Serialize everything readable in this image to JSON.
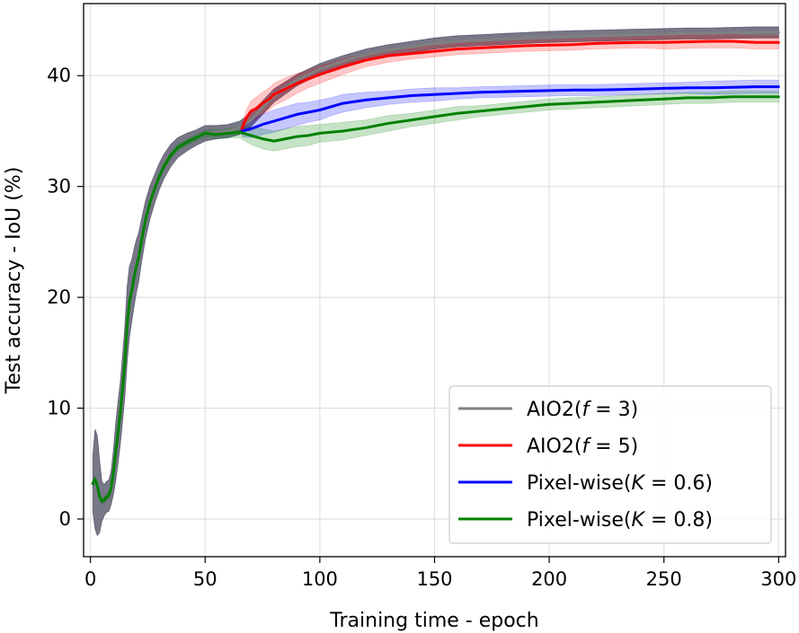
{
  "chart_data": {
    "type": "line",
    "title": "",
    "xlabel": "Training time - epoch",
    "ylabel": "Test accuracy - IoU (%)",
    "xlim": [
      -3,
      303
    ],
    "ylim": [
      -3.4,
      46.5
    ],
    "xticks": [
      0,
      50,
      100,
      150,
      200,
      250,
      300
    ],
    "yticks": [
      0,
      10,
      20,
      30,
      40
    ],
    "grid": true,
    "legend_position": "lower-right",
    "series": [
      {
        "name": "AIO2(f = 3)",
        "legend_prefix": "AIO2(",
        "legend_var": "f",
        "legend_suffix": " = 3)",
        "color": "#808080",
        "band_color": "#4a4a60",
        "x": [
          1,
          2,
          3,
          4,
          5,
          6,
          7,
          8,
          9,
          10,
          11,
          12,
          13,
          14,
          15,
          16,
          17,
          18,
          19,
          20,
          21,
          22,
          24,
          26,
          28,
          30,
          32,
          35,
          38,
          42,
          46,
          50,
          55,
          60,
          65,
          70,
          80,
          90,
          100,
          110,
          120,
          130,
          140,
          150,
          160,
          170,
          180,
          190,
          200,
          210,
          220,
          230,
          240,
          250,
          260,
          270,
          280,
          290,
          300
        ],
        "y": [
          3.2,
          3.6,
          3.0,
          2.0,
          1.6,
          1.7,
          2.0,
          2.1,
          2.8,
          4.2,
          6.0,
          7.8,
          9.5,
          11.8,
          14.2,
          17.6,
          19.6,
          20.6,
          21.8,
          22.8,
          23.6,
          24.8,
          27.0,
          28.6,
          29.8,
          30.9,
          31.8,
          32.8,
          33.5,
          34.0,
          34.4,
          34.8,
          34.9,
          35.0,
          35.3,
          36.0,
          38.2,
          39.6,
          40.6,
          41.3,
          41.9,
          42.3,
          42.6,
          42.9,
          43.1,
          43.2,
          43.3,
          43.4,
          43.5,
          43.55,
          43.6,
          43.65,
          43.7,
          43.75,
          43.8,
          43.8,
          43.85,
          43.9,
          43.9
        ],
        "band": [
          2.5,
          4.5,
          4.5,
          3.2,
          1.8,
          1.4,
          1.4,
          1.4,
          1.5,
          2.0,
          2.6,
          2.8,
          2.8,
          3.0,
          3.2,
          3.4,
          3.2,
          2.8,
          2.6,
          2.4,
          2.2,
          2.0,
          1.7,
          1.5,
          1.3,
          1.2,
          1.1,
          1.0,
          0.9,
          0.8,
          0.7,
          0.7,
          0.6,
          0.6,
          0.6,
          0.6,
          0.6,
          0.5,
          0.5,
          0.5,
          0.5,
          0.5,
          0.5,
          0.5,
          0.5,
          0.5,
          0.5,
          0.5,
          0.5,
          0.5,
          0.5,
          0.5,
          0.5,
          0.5,
          0.5,
          0.5,
          0.5,
          0.5,
          0.5
        ]
      },
      {
        "name": "AIO2(f = 5)",
        "legend_prefix": "AIO2(",
        "legend_var": "f",
        "legend_suffix": " = 5)",
        "color": "#ff0000",
        "band_color": "#ff0000",
        "x": [
          66,
          68,
          70,
          72,
          75,
          78,
          80,
          85,
          90,
          95,
          100,
          110,
          120,
          130,
          140,
          150,
          160,
          170,
          180,
          190,
          200,
          210,
          220,
          230,
          240,
          250,
          260,
          270,
          280,
          290,
          300
        ],
        "y": [
          35.2,
          36.2,
          36.8,
          37.0,
          37.5,
          37.9,
          38.3,
          38.8,
          39.3,
          39.7,
          40.1,
          40.8,
          41.4,
          41.8,
          42.0,
          42.2,
          42.4,
          42.5,
          42.6,
          42.7,
          42.75,
          42.8,
          42.9,
          42.95,
          43.0,
          43.0,
          43.05,
          43.1,
          43.1,
          43.0,
          43.0
        ],
        "band": [
          0.4,
          0.7,
          0.9,
          1.0,
          1.0,
          1.0,
          1.0,
          1.0,
          0.9,
          0.8,
          0.8,
          0.7,
          0.6,
          0.6,
          0.5,
          0.5,
          0.5,
          0.5,
          0.5,
          0.5,
          0.5,
          0.5,
          0.5,
          0.5,
          0.5,
          0.6,
          0.6,
          0.6,
          0.6,
          0.6,
          0.6
        ]
      },
      {
        "name": "Pixel-wise(K = 0.6)",
        "legend_prefix": "Pixel-wise(",
        "legend_var": "K",
        "legend_suffix": " = 0.6)",
        "color": "#0000ff",
        "band_color": "#0000ff",
        "x": [
          66,
          70,
          75,
          80,
          85,
          90,
          95,
          100,
          105,
          110,
          120,
          130,
          140,
          150,
          160,
          170,
          180,
          190,
          200,
          210,
          220,
          230,
          240,
          250,
          260,
          270,
          280,
          290,
          300
        ],
        "y": [
          35.0,
          35.2,
          35.6,
          35.9,
          36.2,
          36.5,
          36.7,
          36.9,
          37.2,
          37.5,
          37.8,
          38.0,
          38.2,
          38.3,
          38.4,
          38.5,
          38.55,
          38.6,
          38.65,
          38.7,
          38.7,
          38.75,
          38.8,
          38.85,
          38.9,
          38.9,
          38.95,
          39.0,
          39.0
        ],
        "band": [
          0.5,
          0.8,
          0.9,
          1.0,
          1.0,
          1.0,
          0.9,
          0.9,
          0.8,
          0.8,
          0.7,
          0.6,
          0.6,
          0.6,
          0.5,
          0.5,
          0.5,
          0.5,
          0.5,
          0.5,
          0.5,
          0.5,
          0.5,
          0.5,
          0.5,
          0.6,
          0.6,
          0.6,
          0.6
        ]
      },
      {
        "name": "Pixel-wise(K = 0.8)",
        "legend_prefix": "Pixel-wise(",
        "legend_var": "K",
        "legend_suffix": " = 0.8)",
        "color": "#008000",
        "band_color": "#008000",
        "x": [
          1,
          2,
          3,
          4,
          5,
          6,
          7,
          8,
          9,
          10,
          11,
          12,
          13,
          14,
          15,
          16,
          17,
          18,
          19,
          20,
          21,
          22,
          24,
          26,
          28,
          30,
          32,
          35,
          38,
          42,
          46,
          50,
          55,
          60,
          65,
          70,
          75,
          80,
          85,
          90,
          95,
          100,
          110,
          120,
          130,
          140,
          150,
          160,
          170,
          180,
          190,
          200,
          210,
          220,
          230,
          240,
          250,
          260,
          270,
          280,
          290,
          300
        ],
        "y": [
          3.2,
          3.6,
          3.0,
          2.0,
          1.6,
          1.7,
          2.0,
          2.1,
          2.8,
          4.2,
          6.0,
          7.8,
          9.5,
          11.8,
          14.2,
          17.6,
          19.6,
          20.6,
          21.8,
          22.8,
          23.6,
          24.8,
          27.0,
          28.6,
          29.8,
          30.9,
          31.8,
          32.8,
          33.5,
          34.0,
          34.4,
          34.8,
          34.7,
          34.8,
          34.9,
          34.6,
          34.3,
          34.1,
          34.3,
          34.5,
          34.6,
          34.8,
          35.0,
          35.3,
          35.7,
          36.0,
          36.3,
          36.6,
          36.8,
          37.0,
          37.2,
          37.4,
          37.5,
          37.6,
          37.7,
          37.8,
          37.9,
          38.0,
          38.0,
          38.1,
          38.1,
          38.1
        ],
        "band": [
          0.3,
          0.3,
          0.3,
          0.3,
          0.3,
          0.3,
          0.3,
          0.3,
          0.3,
          0.3,
          0.3,
          0.3,
          0.3,
          0.3,
          0.3,
          0.3,
          0.3,
          0.3,
          0.3,
          0.3,
          0.3,
          0.3,
          0.3,
          0.3,
          0.3,
          0.3,
          0.3,
          0.3,
          0.3,
          0.3,
          0.3,
          0.3,
          0.4,
          0.4,
          0.5,
          0.8,
          0.9,
          0.9,
          0.9,
          0.9,
          0.9,
          0.8,
          0.8,
          0.7,
          0.7,
          0.6,
          0.6,
          0.6,
          0.5,
          0.5,
          0.5,
          0.5,
          0.5,
          0.5,
          0.5,
          0.5,
          0.5,
          0.5,
          0.5,
          0.5,
          0.5,
          0.5
        ]
      }
    ]
  }
}
